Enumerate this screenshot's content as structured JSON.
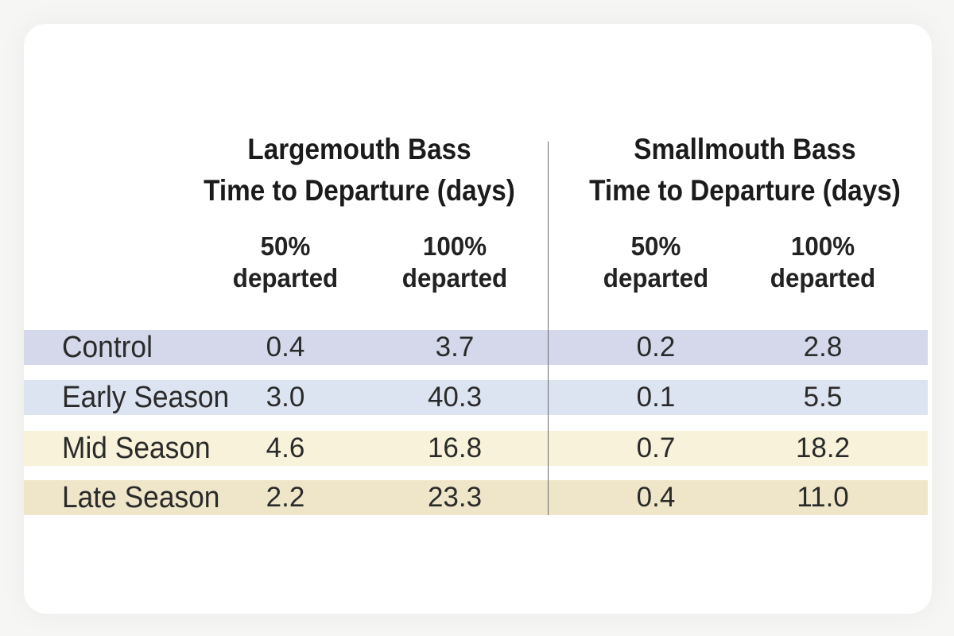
{
  "chart_data": {
    "type": "table",
    "groups": [
      {
        "title_line1": "Largemouth Bass",
        "title_line2": "Time to Departure (days)"
      },
      {
        "title_line1": "Smallmouth Bass",
        "title_line2": "Time to Departure (days)"
      }
    ],
    "columns": [
      {
        "line1": "50%",
        "line2": "departed"
      },
      {
        "line1": "100%",
        "line2": "departed"
      },
      {
        "line1": "50%",
        "line2": "departed"
      },
      {
        "line1": "100%",
        "line2": "departed"
      }
    ],
    "rows": [
      {
        "label": "Control",
        "values": [
          "0.4",
          "3.7",
          "0.2",
          "2.8"
        ],
        "color": "#d5d8ea"
      },
      {
        "label": "Early Season",
        "values": [
          "3.0",
          "40.3",
          "0.1",
          "5.5"
        ],
        "color": "#dde4f1"
      },
      {
        "label": "Mid Season",
        "values": [
          "4.6",
          "16.8",
          "0.7",
          "18.2"
        ],
        "color": "#f7f2d9"
      },
      {
        "label": "Late Season",
        "values": [
          "2.2",
          "23.3",
          "0.4",
          "11.0"
        ],
        "color": "#efe6c9"
      }
    ]
  }
}
